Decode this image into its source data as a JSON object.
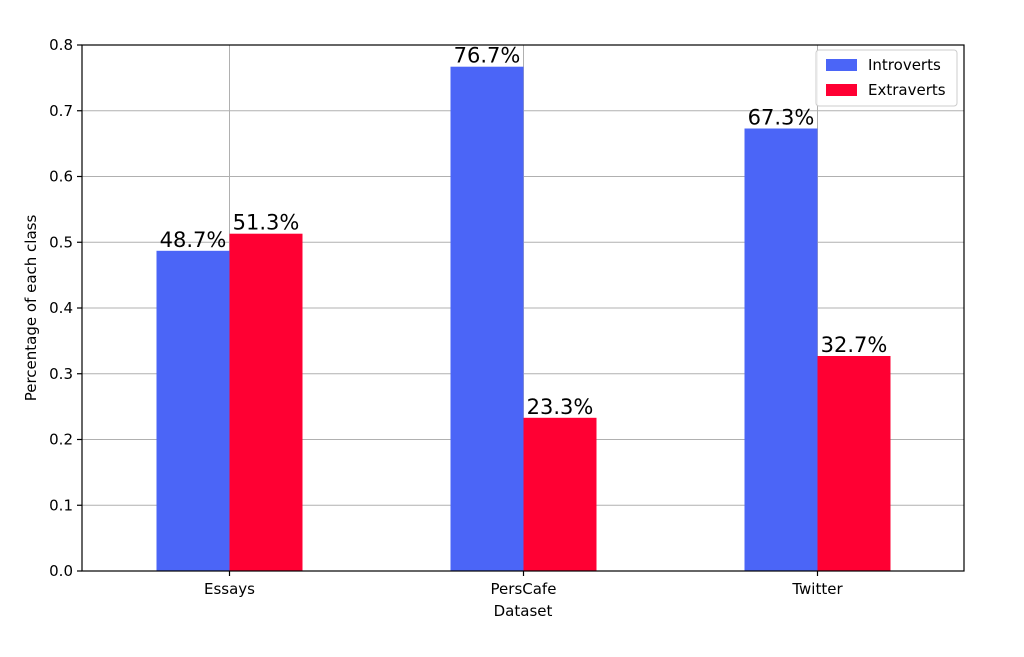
{
  "chart_data": {
    "type": "bar",
    "title": "",
    "xlabel": "Dataset",
    "ylabel": "Percentage of each class",
    "categories": [
      "Essays",
      "PersCafe",
      "Twitter"
    ],
    "series": [
      {
        "name": "Introverts",
        "values": [
          0.487,
          0.767,
          0.673
        ],
        "labels": [
          "48.7%",
          "76.7%",
          "67.3%"
        ],
        "color": "#4b65f7"
      },
      {
        "name": "Extraverts",
        "values": [
          0.513,
          0.233,
          0.327
        ],
        "labels": [
          "51.3%",
          "23.3%",
          "32.7%"
        ],
        "color": "#ff0033"
      }
    ],
    "ylim": [
      0,
      0.8
    ],
    "yticks": [
      0.0,
      0.1,
      0.2,
      0.3,
      0.4,
      0.5,
      0.6,
      0.7,
      0.8
    ],
    "ytick_labels": [
      "0.0",
      "0.1",
      "0.2",
      "0.3",
      "0.4",
      "0.5",
      "0.6",
      "0.7",
      "0.8"
    ],
    "grid": true,
    "legend_position": "top-right"
  }
}
